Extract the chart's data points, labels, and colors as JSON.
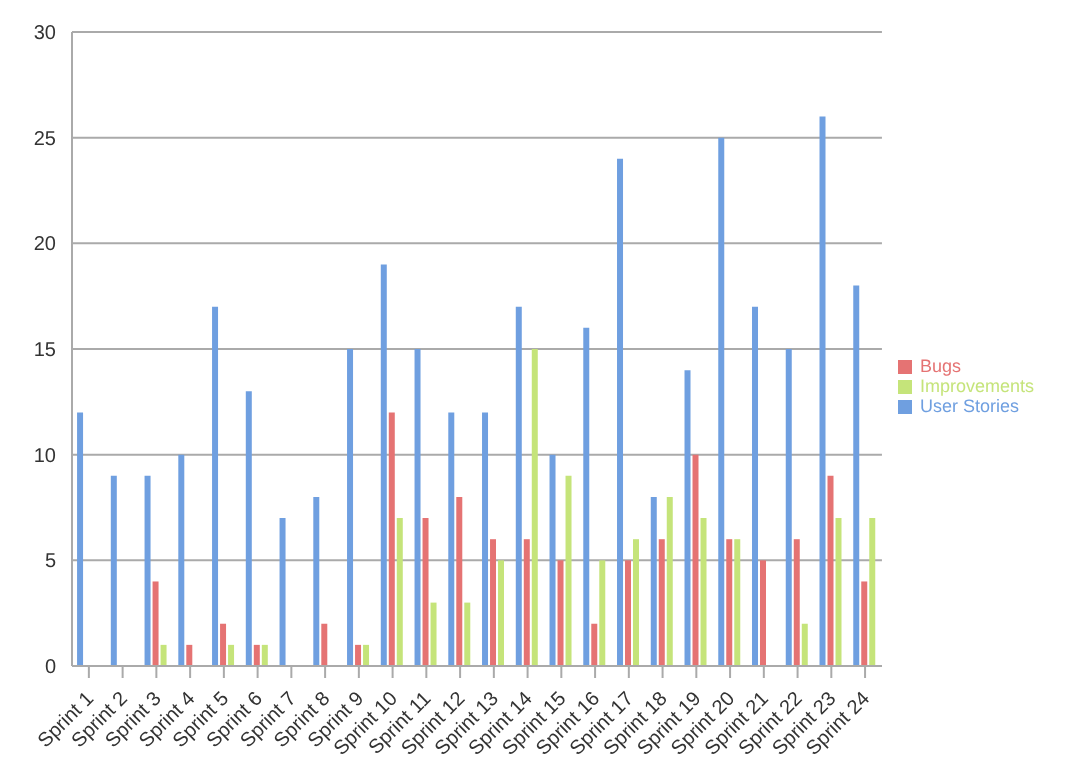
{
  "chart_data": {
    "type": "bar",
    "categories": [
      "Sprint 1",
      "Sprint 2",
      "Sprint 3",
      "Sprint 4",
      "Sprint 5",
      "Sprint 6",
      "Sprint 7",
      "Sprint 8",
      "Sprint 9",
      "Sprint 10",
      "Sprint 11",
      "Sprint 12",
      "Sprint 13",
      "Sprint 14",
      "Sprint 15",
      "Sprint 16",
      "Sprint 17",
      "Sprint 18",
      "Sprint 19",
      "Sprint 20",
      "Sprint 21",
      "Sprint 22",
      "Sprint 23",
      "Sprint 24"
    ],
    "series": [
      {
        "name": "User Stories",
        "color": "#6f9fe0",
        "values": [
          12,
          9,
          9,
          10,
          17,
          13,
          7,
          8,
          15,
          19,
          15,
          12,
          12,
          17,
          10,
          16,
          24,
          8,
          14,
          25,
          17,
          15,
          26,
          18
        ]
      },
      {
        "name": "Bugs",
        "color": "#e57373",
        "values": [
          0,
          0,
          4,
          1,
          2,
          1,
          0,
          2,
          1,
          12,
          7,
          8,
          6,
          6,
          5,
          2,
          5,
          6,
          10,
          6,
          5,
          6,
          9,
          4
        ]
      },
      {
        "name": "Improvements",
        "color": "#c5e47a",
        "values": [
          0,
          0,
          1,
          0,
          1,
          1,
          0,
          0,
          1,
          7,
          3,
          3,
          5,
          15,
          9,
          5,
          6,
          8,
          7,
          6,
          0,
          2,
          7,
          7
        ]
      }
    ],
    "ylim": [
      0,
      30
    ],
    "yticks": [
      0,
      5,
      10,
      15,
      20,
      25,
      30
    ],
    "grid": "y",
    "legend": "right"
  }
}
